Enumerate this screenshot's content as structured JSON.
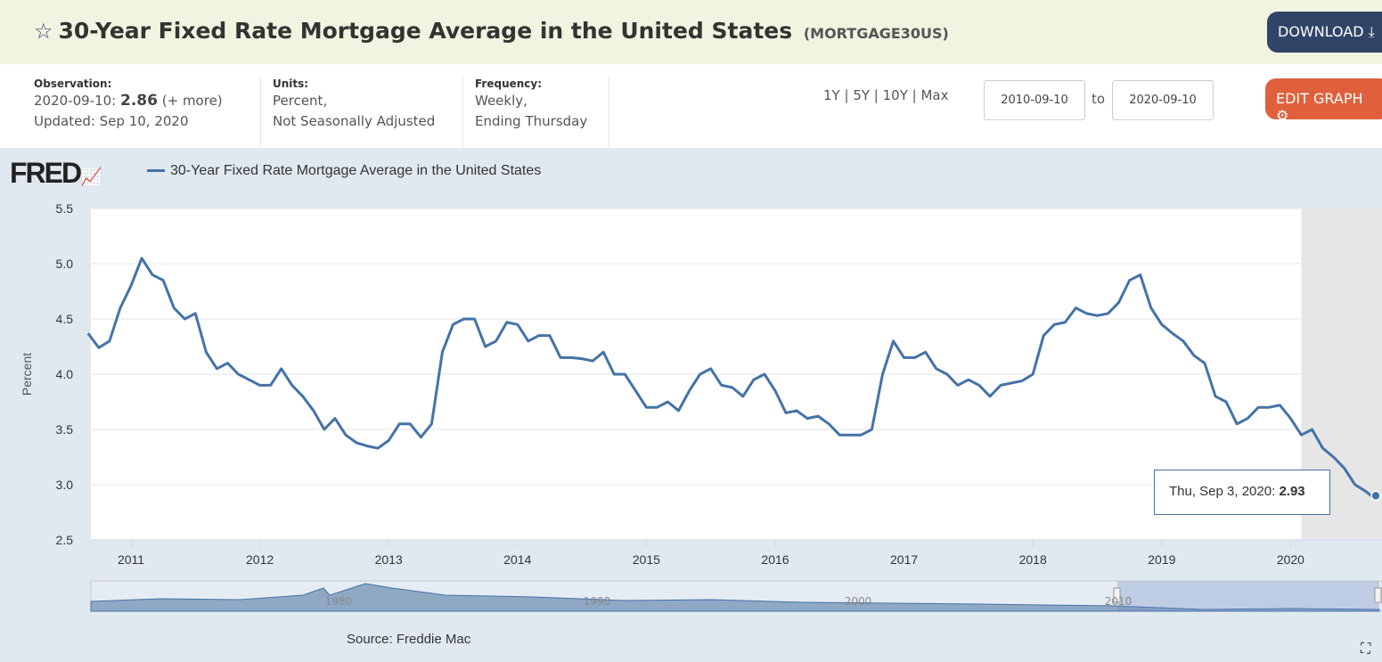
{
  "header": {
    "title": "30-Year Fixed Rate Mortgage Average in the United States",
    "series_id": "(MORTGAGE30US)",
    "download_label": "DOWNLOAD",
    "star_icon": "star-outline",
    "download_icon": "download"
  },
  "meta": {
    "observation_label": "Observation:",
    "observation_date": "2020-09-10:",
    "observation_value": "2.86",
    "observation_more": "(+ more)",
    "updated": "Updated: Sep 10, 2020",
    "units_label": "Units:",
    "units_1": "Percent,",
    "units_2": "Not Seasonally Adjusted",
    "frequency_label": "Frequency:",
    "frequency_1": "Weekly,",
    "frequency_2": "Ending Thursday"
  },
  "controls": {
    "ranges": [
      "1Y",
      "5Y",
      "10Y",
      "Max"
    ],
    "start_date": "2010-09-10",
    "to": "to",
    "end_date": "2020-09-10",
    "edit_label": "EDIT GRAPH",
    "edit_icon": "gear"
  },
  "graph": {
    "logo": "FRED",
    "source": "Source: Freddie Mac",
    "tooltip_date": "Thu, Sep 3, 2020:",
    "tooltip_value": "2.93"
  },
  "colors": {
    "line": "#4572a7",
    "download": "#2f4467",
    "edit": "#e0603c",
    "recession": "#e6e6e6"
  },
  "chart_data": {
    "type": "line",
    "title": "",
    "ylabel": "Percent",
    "ylim": [
      2.5,
      5.5
    ],
    "yticks": [
      "2.5",
      "3.0",
      "3.5",
      "4.0",
      "4.5",
      "5.0",
      "5.5"
    ],
    "xticks": [
      "2011",
      "2012",
      "2013",
      "2014",
      "2015",
      "2016",
      "2017",
      "2018",
      "2019",
      "2020"
    ],
    "grid": true,
    "legend": "top-left",
    "recession_shading": [
      "2020-02",
      "2020-09"
    ],
    "navigator_labels": [
      "1980",
      "1990",
      "2000",
      "2010"
    ],
    "series": [
      {
        "name": "30-Year Fixed Rate Mortgage Average in the United States",
        "x": [
          "2010-09",
          "2010-10",
          "2010-11",
          "2010-12",
          "2011-01",
          "2011-02",
          "2011-03",
          "2011-04",
          "2011-05",
          "2011-06",
          "2011-07",
          "2011-08",
          "2011-09",
          "2011-10",
          "2011-11",
          "2011-12",
          "2012-01",
          "2012-02",
          "2012-03",
          "2012-04",
          "2012-05",
          "2012-06",
          "2012-07",
          "2012-08",
          "2012-09",
          "2012-10",
          "2012-11",
          "2012-12",
          "2013-01",
          "2013-02",
          "2013-03",
          "2013-04",
          "2013-05",
          "2013-06",
          "2013-07",
          "2013-08",
          "2013-09",
          "2013-10",
          "2013-11",
          "2013-12",
          "2014-01",
          "2014-02",
          "2014-03",
          "2014-04",
          "2014-05",
          "2014-06",
          "2014-07",
          "2014-08",
          "2014-09",
          "2014-10",
          "2014-11",
          "2014-12",
          "2015-01",
          "2015-02",
          "2015-03",
          "2015-04",
          "2015-05",
          "2015-06",
          "2015-07",
          "2015-08",
          "2015-09",
          "2015-10",
          "2015-11",
          "2015-12",
          "2016-01",
          "2016-02",
          "2016-03",
          "2016-04",
          "2016-05",
          "2016-06",
          "2016-07",
          "2016-08",
          "2016-09",
          "2016-10",
          "2016-11",
          "2016-12",
          "2017-01",
          "2017-02",
          "2017-03",
          "2017-04",
          "2017-05",
          "2017-06",
          "2017-07",
          "2017-08",
          "2017-09",
          "2017-10",
          "2017-11",
          "2017-12",
          "2018-01",
          "2018-02",
          "2018-03",
          "2018-04",
          "2018-05",
          "2018-06",
          "2018-07",
          "2018-08",
          "2018-09",
          "2018-10",
          "2018-11",
          "2018-12",
          "2019-01",
          "2019-02",
          "2019-03",
          "2019-04",
          "2019-05",
          "2019-06",
          "2019-07",
          "2019-08",
          "2019-09",
          "2019-10",
          "2019-11",
          "2019-12",
          "2020-01",
          "2020-02",
          "2020-03",
          "2020-04",
          "2020-05",
          "2020-06",
          "2020-07",
          "2020-08",
          "2020-09"
        ],
        "values": [
          4.37,
          4.24,
          4.3,
          4.6,
          4.8,
          5.05,
          4.9,
          4.85,
          4.6,
          4.5,
          4.55,
          4.2,
          4.05,
          4.1,
          4.0,
          3.95,
          3.9,
          3.9,
          4.05,
          3.9,
          3.8,
          3.67,
          3.5,
          3.6,
          3.45,
          3.38,
          3.35,
          3.33,
          3.4,
          3.55,
          3.55,
          3.43,
          3.55,
          4.2,
          4.45,
          4.5,
          4.5,
          4.25,
          4.3,
          4.47,
          4.45,
          4.3,
          4.35,
          4.35,
          4.15,
          4.15,
          4.14,
          4.12,
          4.2,
          4.0,
          4.0,
          3.85,
          3.7,
          3.7,
          3.75,
          3.67,
          3.85,
          4.0,
          4.05,
          3.9,
          3.88,
          3.8,
          3.95,
          4.0,
          3.85,
          3.65,
          3.67,
          3.6,
          3.62,
          3.55,
          3.45,
          3.45,
          3.45,
          3.5,
          4.0,
          4.3,
          4.15,
          4.15,
          4.2,
          4.05,
          4.0,
          3.9,
          3.95,
          3.9,
          3.8,
          3.9,
          3.92,
          3.94,
          4.0,
          4.35,
          4.45,
          4.47,
          4.6,
          4.55,
          4.53,
          4.55,
          4.65,
          4.85,
          4.9,
          4.6,
          4.45,
          4.37,
          4.3,
          4.17,
          4.1,
          3.8,
          3.75,
          3.55,
          3.6,
          3.7,
          3.7,
          3.72,
          3.6,
          3.45,
          3.5,
          3.33,
          3.25,
          3.15,
          3.0,
          2.94,
          2.86
        ]
      }
    ]
  }
}
